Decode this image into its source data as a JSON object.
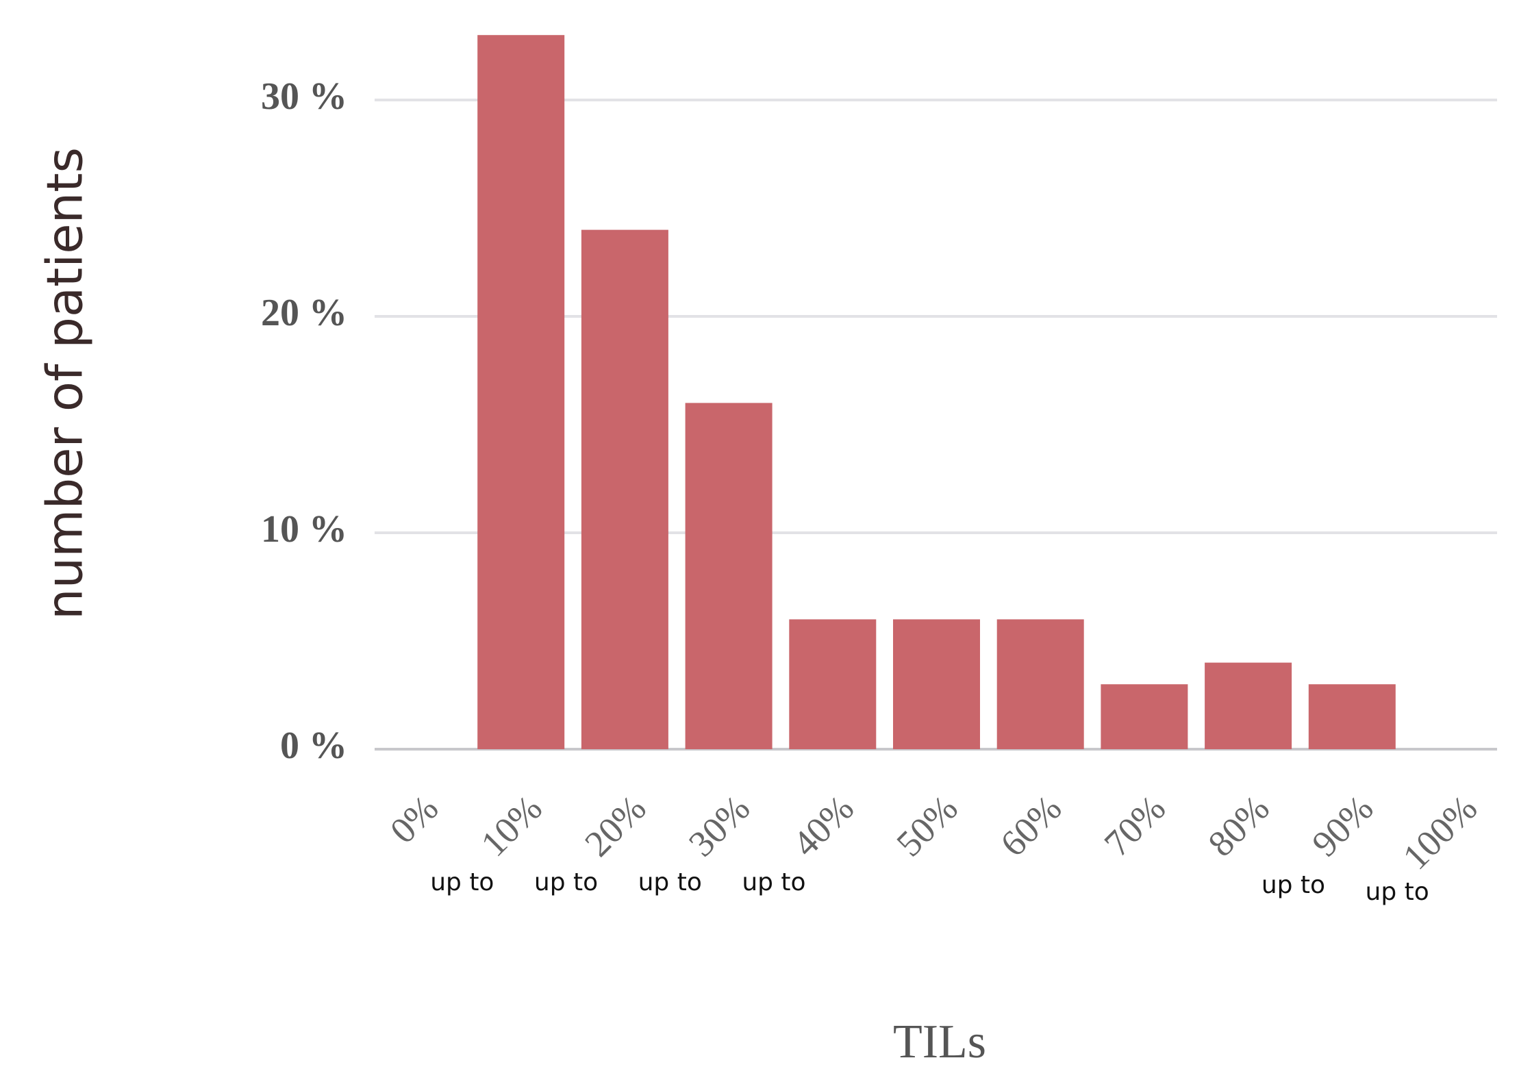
{
  "chart_data": {
    "type": "bar",
    "x_label": "TILs",
    "y_label": "number of patients",
    "categories": [
      "0%",
      "10%",
      "20%",
      "30%",
      "40%",
      "50%",
      "60%",
      "70%",
      "80%",
      "90%",
      "100%"
    ],
    "values": [
      0,
      33,
      24,
      16,
      6,
      6,
      6,
      3,
      4,
      3,
      0
    ],
    "color": "#c9666b",
    "ylim": [
      0,
      34
    ],
    "yticks": [
      {
        "value": 0,
        "label": "0 %"
      },
      {
        "value": 10,
        "label": "10 %"
      },
      {
        "value": 20,
        "label": "20 %"
      },
      {
        "value": 30,
        "label": "30 %"
      }
    ],
    "grid": true,
    "annotations": [
      "up to",
      "up to",
      "up to",
      "up to",
      "up to",
      "up to"
    ]
  }
}
